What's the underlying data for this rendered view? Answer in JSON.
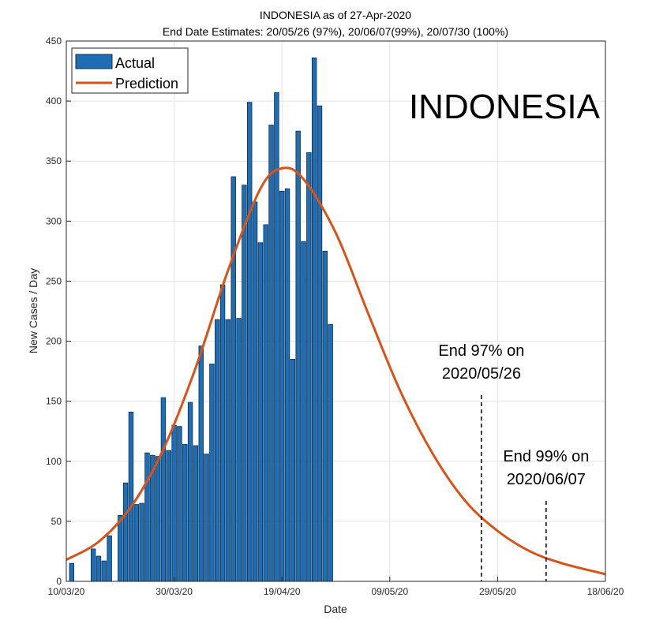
{
  "chart_data": {
    "type": "bar",
    "title": "INDONESIA as of 27-Apr-2020",
    "subtitle": "End Date Estimates: 20/05/26 (97%), 20/06/07(99%), 20/07/30 (100%)",
    "xlabel": "Date",
    "ylabel": "New Cases / Day",
    "country_label": "INDONESIA",
    "x_range": [
      "2020-03-10",
      "2020-06-18"
    ],
    "ylim": [
      0,
      450
    ],
    "x_ticks": [
      "10/03/20",
      "30/03/20",
      "19/04/20",
      "09/05/20",
      "29/05/20",
      "18/06/20"
    ],
    "y_ticks": [
      "0",
      "50",
      "100",
      "150",
      "200",
      "250",
      "300",
      "350",
      "400",
      "450"
    ],
    "grid": true,
    "legend": {
      "placement": "top-left",
      "entries": [
        "Actual",
        "Prediction"
      ]
    },
    "colors": {
      "actual": "#1f6db3",
      "actual_edge": "#0d2f4f",
      "prediction": "#d95319"
    },
    "series": [
      {
        "name": "Actual",
        "type": "bar",
        "start_date": "2020-03-11",
        "values": [
          15,
          0,
          0,
          0,
          27,
          21,
          17,
          38,
          0,
          55,
          82,
          141,
          64,
          65,
          107,
          105,
          104,
          153,
          109,
          130,
          129,
          114,
          149,
          113,
          196,
          106,
          181,
          218,
          247,
          218,
          337,
          219,
          330,
          399,
          316,
          282,
          297,
          380,
          407,
          325,
          327,
          185,
          375,
          283,
          357,
          436,
          396,
          275,
          214
        ]
      },
      {
        "name": "Prediction",
        "type": "line",
        "points": [
          [
            "2020-03-10",
            18
          ],
          [
            "2020-03-16",
            33
          ],
          [
            "2020-03-22",
            62
          ],
          [
            "2020-03-28",
            110
          ],
          [
            "2020-04-03",
            178
          ],
          [
            "2020-04-09",
            259
          ],
          [
            "2020-04-15",
            327
          ],
          [
            "2020-04-19",
            344
          ],
          [
            "2020-04-23",
            335
          ],
          [
            "2020-04-29",
            290
          ],
          [
            "2020-05-05",
            223
          ],
          [
            "2020-05-11",
            158
          ],
          [
            "2020-05-17",
            106
          ],
          [
            "2020-05-23",
            67
          ],
          [
            "2020-05-29",
            42
          ],
          [
            "2020-06-04",
            25
          ],
          [
            "2020-06-10",
            15
          ],
          [
            "2020-06-18",
            6
          ]
        ]
      }
    ],
    "annotations": [
      {
        "date": "2020-05-26",
        "line1": "End 97% on",
        "line2": "2020/05/26",
        "line_top": 155
      },
      {
        "date": "2020-06-07",
        "line1": "End 99% on",
        "line2": "2020/06/07",
        "line_top": 67
      }
    ]
  }
}
